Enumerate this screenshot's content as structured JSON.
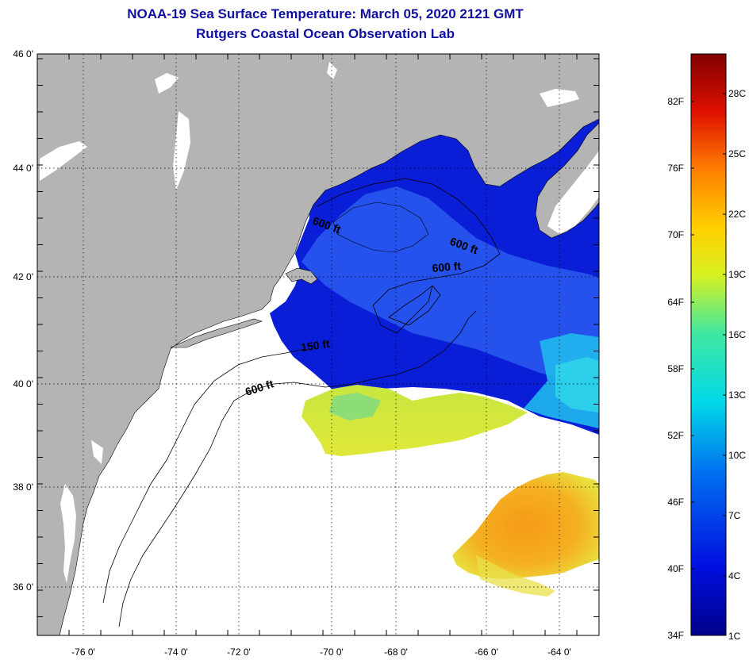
{
  "title": {
    "line1": "NOAA-19 Sea Surface Temperature:  March 05, 2020 2121 GMT",
    "line2": "Rutgers Coastal Ocean Observation Lab"
  },
  "axes": {
    "lat_labels": [
      "46 0'",
      "44 0'",
      "42 0'",
      "40 0'",
      "38 0'",
      "36 0'"
    ],
    "lon_labels": [
      "-76 0'",
      "-74 0'",
      "-72 0'",
      "-70 0'",
      "-68 0'",
      "-66 0'",
      "-64 0'"
    ]
  },
  "contours": {
    "depth_labels": [
      "600 ft",
      "600 ft",
      "600 ft",
      "600 ft",
      "150 ft"
    ]
  },
  "colorbar": {
    "fahrenheit": [
      "82F",
      "76F",
      "70F",
      "64F",
      "58F",
      "52F",
      "46F",
      "40F",
      "34F"
    ],
    "celsius": [
      "28C",
      "25C",
      "22C",
      "19C",
      "16C",
      "13C",
      "10C",
      "7C",
      "4C",
      "1C"
    ]
  },
  "colors": {
    "land": "#b4b4b4",
    "title": "#1010a0",
    "cold": "#0a14d0",
    "warm": "#f0a020"
  }
}
